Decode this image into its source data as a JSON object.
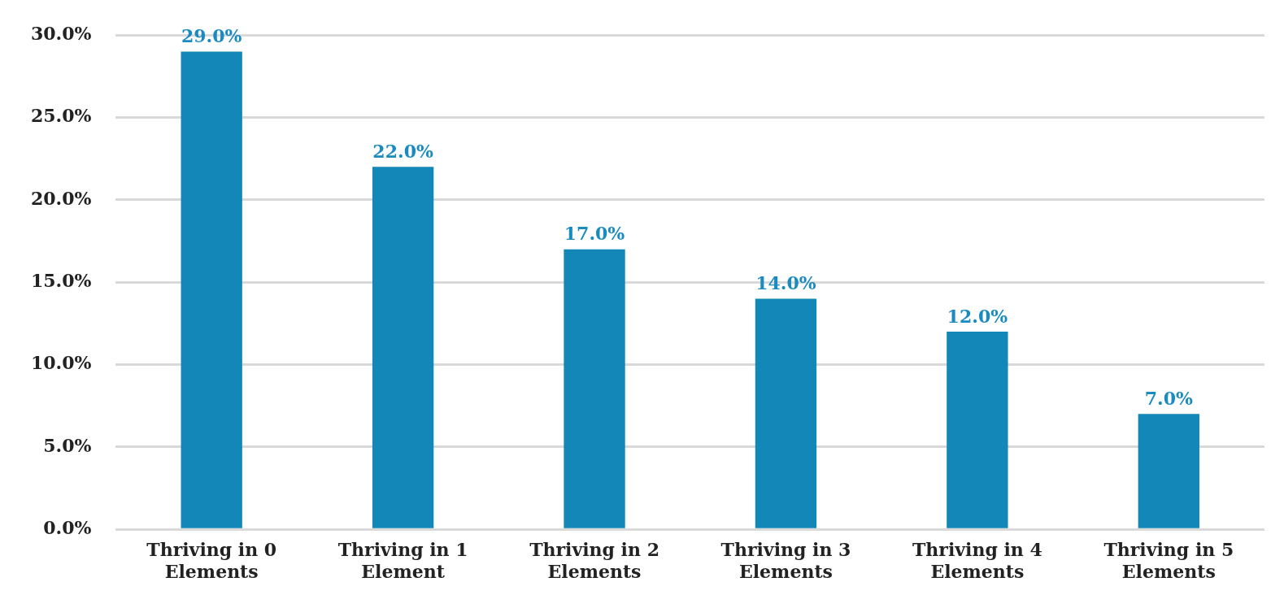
{
  "chart_data": {
    "type": "bar",
    "categories": [
      "Thriving in 0 Elements",
      "Thriving in 1 Element",
      "Thriving in 2 Elements",
      "Thriving in 3 Elements",
      "Thriving in 4 Elements",
      "Thriving in 5 Elements"
    ],
    "values": [
      29,
      22,
      17,
      14,
      12,
      7
    ],
    "value_labels": [
      "29.0%",
      "22.0%",
      "17.0%",
      "14.0%",
      "12.0%",
      "7.0%"
    ],
    "color": "#1287b8",
    "ylim": [
      0,
      30
    ],
    "yticks": [
      {
        "value": 0,
        "label": "0.0%"
      },
      {
        "value": 5,
        "label": "5.0%"
      },
      {
        "value": 10,
        "label": "10.0%"
      },
      {
        "value": 15,
        "label": "15.0%"
      },
      {
        "value": 20,
        "label": "20.0%"
      },
      {
        "value": 25,
        "label": "25.0%"
      },
      {
        "value": 30,
        "label": "30.0%"
      }
    ],
    "grid": "y"
  }
}
